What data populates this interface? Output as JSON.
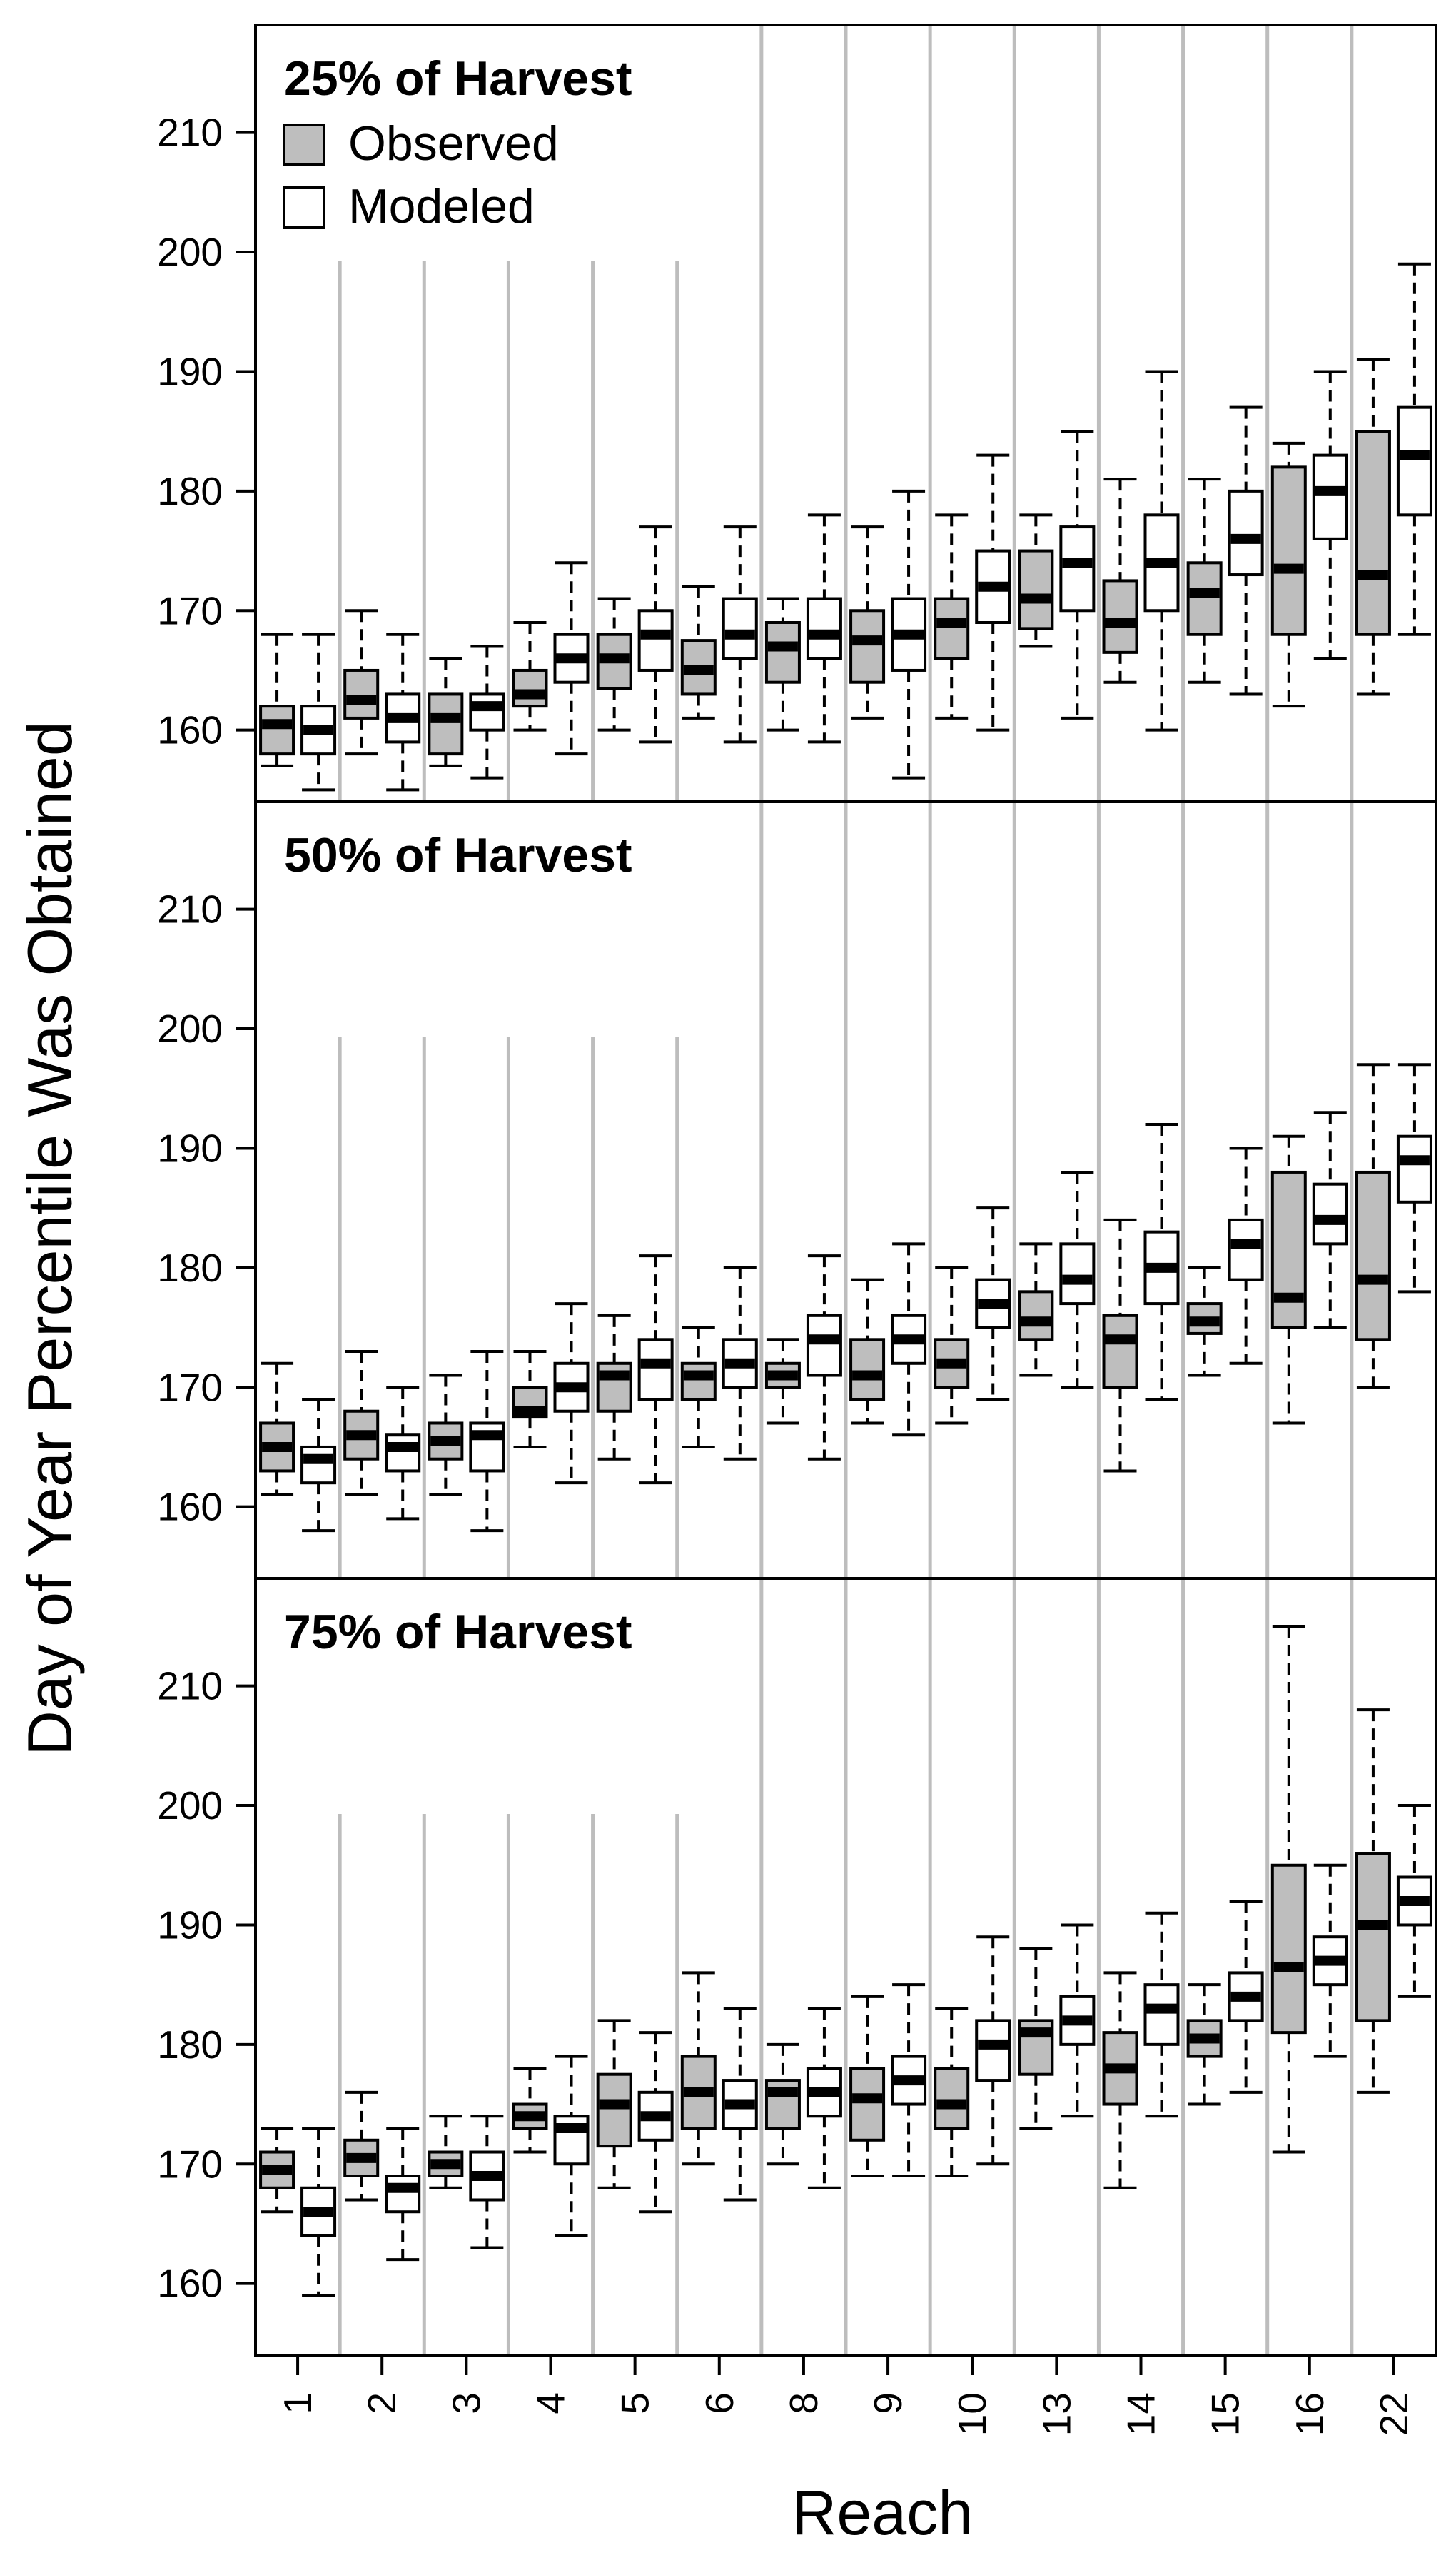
{
  "chart_data": {
    "type": "box",
    "ylabel": "Day of Year Percentile Was Obtained",
    "xlabel": "Reach",
    "categories": [
      "1",
      "2",
      "3",
      "4",
      "5",
      "6",
      "8",
      "9",
      "10",
      "13",
      "14",
      "15",
      "16",
      "22"
    ],
    "yticks": [
      160,
      170,
      180,
      190,
      200,
      210
    ],
    "ylim": [
      153,
      219
    ],
    "legend": [
      {
        "label": "Observed",
        "color": "#bebebe"
      },
      {
        "label": "Modeled",
        "color": "#ffffff"
      }
    ],
    "panels": [
      {
        "title": "25% of Harvest",
        "series": [
          {
            "name": "Observed",
            "boxes": [
              {
                "min": 157,
                "q1": 158,
                "median": 160.5,
                "q3": 162,
                "max": 168
              },
              {
                "min": 158,
                "q1": 161,
                "median": 162.5,
                "q3": 165,
                "max": 170
              },
              {
                "min": 157,
                "q1": 158,
                "median": 161,
                "q3": 163,
                "max": 166
              },
              {
                "min": 160,
                "q1": 162,
                "median": 163,
                "q3": 165,
                "max": 169
              },
              {
                "min": 160,
                "q1": 163.5,
                "median": 166,
                "q3": 168,
                "max": 171
              },
              {
                "min": 161,
                "q1": 163,
                "median": 165,
                "q3": 167.5,
                "max": 172
              },
              {
                "min": 160,
                "q1": 164,
                "median": 167,
                "q3": 169,
                "max": 171
              },
              {
                "min": 161,
                "q1": 164,
                "median": 167.5,
                "q3": 170,
                "max": 177
              },
              {
                "min": 161,
                "q1": 166,
                "median": 169,
                "q3": 171,
                "max": 178
              },
              {
                "min": 167,
                "q1": 168.5,
                "median": 171,
                "q3": 175,
                "max": 178
              },
              {
                "min": 164,
                "q1": 166.5,
                "median": 169,
                "q3": 172.5,
                "max": 181
              },
              {
                "min": 164,
                "q1": 168,
                "median": 171.5,
                "q3": 174,
                "max": 181
              },
              {
                "min": 162,
                "q1": 168,
                "median": 173.5,
                "q3": 182,
                "max": 184
              },
              {
                "min": 163,
                "q1": 168,
                "median": 173,
                "q3": 185,
                "max": 191
              }
            ]
          },
          {
            "name": "Modeled",
            "boxes": [
              {
                "min": 155,
                "q1": 158,
                "median": 160,
                "q3": 162,
                "max": 168
              },
              {
                "min": 155,
                "q1": 159,
                "median": 161,
                "q3": 163,
                "max": 168
              },
              {
                "min": 156,
                "q1": 160,
                "median": 162,
                "q3": 163,
                "max": 167
              },
              {
                "min": 158,
                "q1": 164,
                "median": 166,
                "q3": 168,
                "max": 174
              },
              {
                "min": 159,
                "q1": 165,
                "median": 168,
                "q3": 170,
                "max": 177
              },
              {
                "min": 159,
                "q1": 166,
                "median": 168,
                "q3": 171,
                "max": 177
              },
              {
                "min": 159,
                "q1": 166,
                "median": 168,
                "q3": 171,
                "max": 178
              },
              {
                "min": 156,
                "q1": 165,
                "median": 168,
                "q3": 171,
                "max": 180
              },
              {
                "min": 160,
                "q1": 169,
                "median": 172,
                "q3": 175,
                "max": 183
              },
              {
                "min": 161,
                "q1": 170,
                "median": 174,
                "q3": 177,
                "max": 185
              },
              {
                "min": 160,
                "q1": 170,
                "median": 174,
                "q3": 178,
                "max": 190
              },
              {
                "min": 163,
                "q1": 173,
                "median": 176,
                "q3": 180,
                "max": 187
              },
              {
                "min": 166,
                "q1": 176,
                "median": 180,
                "q3": 183,
                "max": 190
              },
              {
                "min": 168,
                "q1": 178,
                "median": 183,
                "q3": 187,
                "max": 199
              }
            ]
          }
        ]
      },
      {
        "title": "50% of Harvest",
        "series": [
          {
            "name": "Observed",
            "boxes": [
              {
                "min": 161,
                "q1": 163,
                "median": 165,
                "q3": 167,
                "max": 172
              },
              {
                "min": 161,
                "q1": 164,
                "median": 166,
                "q3": 168,
                "max": 173
              },
              {
                "min": 161,
                "q1": 164,
                "median": 165.5,
                "q3": 167,
                "max": 171
              },
              {
                "min": 165,
                "q1": 167.5,
                "median": 168,
                "q3": 170,
                "max": 173
              },
              {
                "min": 164,
                "q1": 168,
                "median": 171,
                "q3": 172,
                "max": 176
              },
              {
                "min": 165,
                "q1": 169,
                "median": 171,
                "q3": 172,
                "max": 175
              },
              {
                "min": 167,
                "q1": 170,
                "median": 171,
                "q3": 172,
                "max": 174
              },
              {
                "min": 167,
                "q1": 169,
                "median": 171,
                "q3": 174,
                "max": 179
              },
              {
                "min": 167,
                "q1": 170,
                "median": 172,
                "q3": 174,
                "max": 180
              },
              {
                "min": 171,
                "q1": 174,
                "median": 175.5,
                "q3": 178,
                "max": 182
              },
              {
                "min": 163,
                "q1": 170,
                "median": 174,
                "q3": 176,
                "max": 184
              },
              {
                "min": 171,
                "q1": 174.5,
                "median": 175.5,
                "q3": 177,
                "max": 180
              },
              {
                "min": 167,
                "q1": 175,
                "median": 177.5,
                "q3": 188,
                "max": 191
              },
              {
                "min": 170,
                "q1": 174,
                "median": 179,
                "q3": 188,
                "max": 197
              }
            ]
          },
          {
            "name": "Modeled",
            "boxes": [
              {
                "min": 158,
                "q1": 162,
                "median": 164,
                "q3": 165,
                "max": 169
              },
              {
                "min": 159,
                "q1": 163,
                "median": 165,
                "q3": 166,
                "max": 170
              },
              {
                "min": 158,
                "q1": 163,
                "median": 166,
                "q3": 167,
                "max": 173
              },
              {
                "min": 162,
                "q1": 168,
                "median": 170,
                "q3": 172,
                "max": 177
              },
              {
                "min": 162,
                "q1": 169,
                "median": 172,
                "q3": 174,
                "max": 181
              },
              {
                "min": 164,
                "q1": 170,
                "median": 172,
                "q3": 174,
                "max": 180
              },
              {
                "min": 164,
                "q1": 171,
                "median": 174,
                "q3": 176,
                "max": 181
              },
              {
                "min": 166,
                "q1": 172,
                "median": 174,
                "q3": 176,
                "max": 182
              },
              {
                "min": 169,
                "q1": 175,
                "median": 177,
                "q3": 179,
                "max": 185
              },
              {
                "min": 170,
                "q1": 177,
                "median": 179,
                "q3": 182,
                "max": 188
              },
              {
                "min": 169,
                "q1": 177,
                "median": 180,
                "q3": 183,
                "max": 192
              },
              {
                "min": 172,
                "q1": 179,
                "median": 182,
                "q3": 184,
                "max": 190
              },
              {
                "min": 175,
                "q1": 182,
                "median": 184,
                "q3": 187,
                "max": 193
              },
              {
                "min": 178,
                "q1": 185.5,
                "median": 189,
                "q3": 191,
                "max": 197
              }
            ]
          }
        ]
      },
      {
        "title": "75% of Harvest",
        "series": [
          {
            "name": "Observed",
            "boxes": [
              {
                "min": 166,
                "q1": 168,
                "median": 169.5,
                "q3": 171,
                "max": 173
              },
              {
                "min": 167,
                "q1": 169,
                "median": 170.5,
                "q3": 172,
                "max": 176
              },
              {
                "min": 168,
                "q1": 169,
                "median": 170,
                "q3": 171,
                "max": 174
              },
              {
                "min": 171,
                "q1": 173,
                "median": 174,
                "q3": 175,
                "max": 178
              },
              {
                "min": 168,
                "q1": 171.5,
                "median": 175,
                "q3": 177.5,
                "max": 182
              },
              {
                "min": 170,
                "q1": 173,
                "median": 176,
                "q3": 179,
                "max": 186
              },
              {
                "min": 170,
                "q1": 173,
                "median": 176,
                "q3": 177,
                "max": 180
              },
              {
                "min": 169,
                "q1": 172,
                "median": 175.5,
                "q3": 178,
                "max": 184
              },
              {
                "min": 169,
                "q1": 173,
                "median": 175,
                "q3": 178,
                "max": 183
              },
              {
                "min": 173,
                "q1": 177.5,
                "median": 181,
                "q3": 182,
                "max": 188
              },
              {
                "min": 168,
                "q1": 175,
                "median": 178,
                "q3": 181,
                "max": 186
              },
              {
                "min": 175,
                "q1": 179,
                "median": 180.5,
                "q3": 182,
                "max": 185
              },
              {
                "min": 171,
                "q1": 181,
                "median": 186.5,
                "q3": 195,
                "max": 215
              },
              {
                "min": 176,
                "q1": 182,
                "median": 190,
                "q3": 196,
                "max": 208
              }
            ]
          },
          {
            "name": "Modeled",
            "boxes": [
              {
                "min": 159,
                "q1": 164,
                "median": 166,
                "q3": 168,
                "max": 173
              },
              {
                "min": 162,
                "q1": 166,
                "median": 168,
                "q3": 169,
                "max": 173
              },
              {
                "min": 163,
                "q1": 167,
                "median": 169,
                "q3": 171,
                "max": 174
              },
              {
                "min": 164,
                "q1": 170,
                "median": 173,
                "q3": 174,
                "max": 179
              },
              {
                "min": 166,
                "q1": 172,
                "median": 174,
                "q3": 176,
                "max": 181
              },
              {
                "min": 167,
                "q1": 173,
                "median": 175,
                "q3": 177,
                "max": 183
              },
              {
                "min": 168,
                "q1": 174,
                "median": 176,
                "q3": 178,
                "max": 183
              },
              {
                "min": 169,
                "q1": 175,
                "median": 177,
                "q3": 179,
                "max": 185
              },
              {
                "min": 170,
                "q1": 177,
                "median": 180,
                "q3": 182,
                "max": 189
              },
              {
                "min": 174,
                "q1": 180,
                "median": 182,
                "q3": 184,
                "max": 190
              },
              {
                "min": 174,
                "q1": 180,
                "median": 183,
                "q3": 185,
                "max": 191
              },
              {
                "min": 176,
                "q1": 182,
                "median": 184,
                "q3": 186,
                "max": 192
              },
              {
                "min": 179,
                "q1": 185,
                "median": 187,
                "q3": 189,
                "max": 195
              },
              {
                "min": 184,
                "q1": 190,
                "median": 192,
                "q3": 194,
                "max": 200
              }
            ]
          }
        ]
      }
    ]
  }
}
